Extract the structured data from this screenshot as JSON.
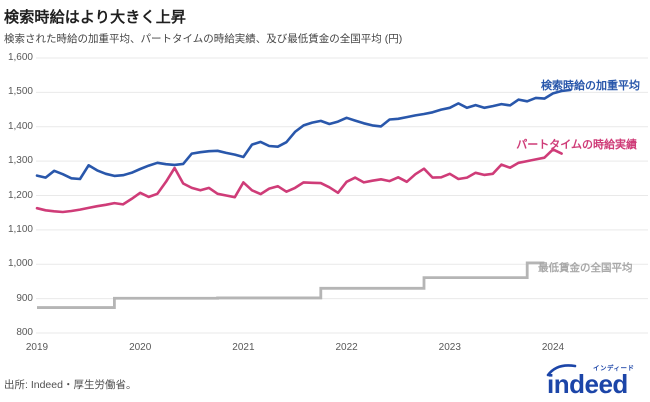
{
  "header": {
    "title": "検索時給はより大きく上昇",
    "subtitle": "検索された時給の加重平均、パートタイムの時給実績、及び最低賃金の全国平均 (円)"
  },
  "footer": {
    "source": "出所: Indeed・厚生労働省。"
  },
  "logo": {
    "brand": "indeed",
    "katakana": "インディード"
  },
  "colors": {
    "search_wage_line": "#2957ab",
    "parttime_wage_line": "#cf3c78",
    "minimum_wage_line": "#b5b5b5",
    "gridline": "#e9e9e9",
    "logo_blue": "#1c45a8"
  },
  "chart_data": {
    "type": "line",
    "title": "検索時給はより大きく上昇",
    "subtitle": "検索された時給の加重平均、パートタイムの時給実績、及び最低賃金の全国平均 (円)",
    "unit": "円 (JPY per hour)",
    "x_start": "2019-01",
    "x_interval": "month",
    "xticks": [
      "2019",
      "2020",
      "2021",
      "2022",
      "2023",
      "2024"
    ],
    "yticks": [
      "1,600",
      "1,500",
      "1,400",
      "1,300",
      "1,200",
      "1,100",
      "1,000",
      "900",
      "800"
    ],
    "ytick_values": [
      1600,
      1500,
      1400,
      1300,
      1200,
      1100,
      1000,
      900,
      800
    ],
    "ylim": [
      800,
      1600
    ],
    "grid": "horizontal",
    "legend_position": "inline-right",
    "series": [
      {
        "name": "検索時給の加重平均",
        "color": "#2957ab",
        "start_month_index": 0,
        "values": [
          1258,
          1252,
          1272,
          1262,
          1250,
          1248,
          1288,
          1273,
          1263,
          1257,
          1259,
          1266,
          1277,
          1287,
          1295,
          1291,
          1289,
          1292,
          1322,
          1326,
          1329,
          1330,
          1324,
          1319,
          1312,
          1348,
          1356,
          1344,
          1342,
          1355,
          1385,
          1404,
          1412,
          1417,
          1408,
          1415,
          1426,
          1418,
          1410,
          1404,
          1401,
          1421,
          1423,
          1428,
          1433,
          1437,
          1442,
          1450,
          1455,
          1468,
          1455,
          1463,
          1455,
          1460,
          1466,
          1462,
          1479,
          1474,
          1484,
          1482,
          1497,
          1504,
          1507
        ]
      },
      {
        "name": "パートタイムの時給実績",
        "color": "#cf3c78",
        "start_month_index": 0,
        "values": [
          1163,
          1157,
          1154,
          1152,
          1155,
          1159,
          1164,
          1169,
          1173,
          1178,
          1174,
          1190,
          1208,
          1196,
          1205,
          1240,
          1280,
          1235,
          1222,
          1215,
          1222,
          1205,
          1200,
          1195,
          1238,
          1215,
          1204,
          1220,
          1227,
          1211,
          1222,
          1238,
          1237,
          1236,
          1224,
          1208,
          1240,
          1252,
          1238,
          1243,
          1247,
          1242,
          1253,
          1240,
          1262,
          1278,
          1252,
          1253,
          1263,
          1248,
          1252,
          1266,
          1260,
          1263,
          1290,
          1281,
          1295,
          1300,
          1305,
          1310,
          1334,
          1322
        ]
      },
      {
        "name": "最低賃金の全国平均",
        "color": "#b5b5b5",
        "style": "step",
        "segments": [
          {
            "from_month_index": 0,
            "to_month_index": 9,
            "value": 874
          },
          {
            "from_month_index": 9,
            "to_month_index": 21,
            "value": 901
          },
          {
            "from_month_index": 21,
            "to_month_index": 33,
            "value": 902
          },
          {
            "from_month_index": 33,
            "to_month_index": 45,
            "value": 930
          },
          {
            "from_month_index": 45,
            "to_month_index": 57,
            "value": 961
          },
          {
            "from_month_index": 57,
            "to_month_index": 59,
            "value": 1004
          }
        ]
      }
    ]
  }
}
